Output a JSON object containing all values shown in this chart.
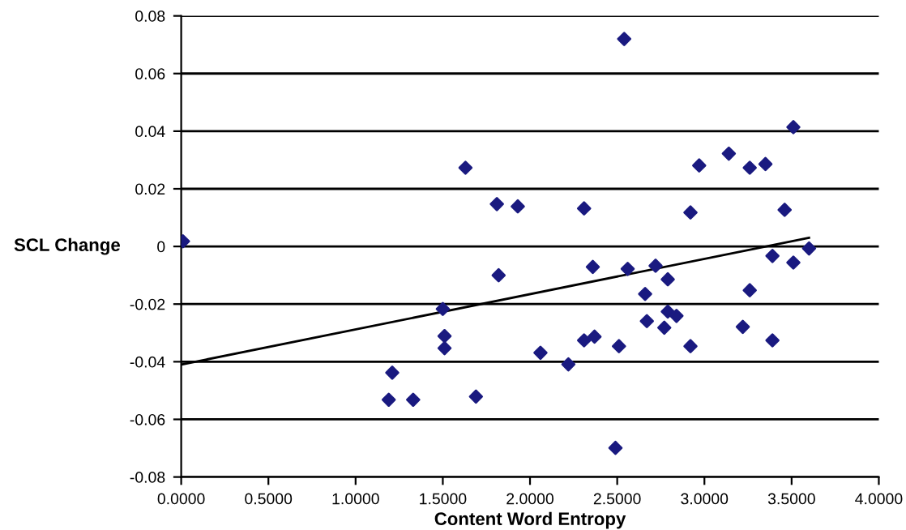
{
  "chart_data": {
    "type": "scatter",
    "xlabel": "Content Word Entropy",
    "ylabel": "SCL Change",
    "xlim": [
      0,
      4
    ],
    "xticks": [
      {
        "value": 0,
        "label": "0.0000"
      },
      {
        "value": 0.5,
        "label": "0.5000"
      },
      {
        "value": 1,
        "label": "1.0000"
      },
      {
        "value": 1.5,
        "label": "1.5000"
      },
      {
        "value": 2,
        "label": "2.0000"
      },
      {
        "value": 2.5,
        "label": "2.5000"
      },
      {
        "value": 3,
        "label": "3.0000"
      },
      {
        "value": 3.5,
        "label": "3.5000"
      },
      {
        "value": 4,
        "label": "4.0000"
      }
    ],
    "ylim": [
      -0.08,
      0.08
    ],
    "yticks": [
      -0.08,
      -0.06,
      -0.04,
      -0.02,
      0,
      0.02,
      0.04,
      0.06,
      0.08
    ],
    "grid": "y",
    "series": [
      {
        "marker": "diamond",
        "color": "#1a1a80",
        "x": [
          0.01,
          2.54,
          3.51,
          3.14,
          2.97,
          3.26,
          3.35,
          1.63,
          1.81,
          1.93,
          2.31,
          2.92,
          3.46,
          3.6,
          3.39,
          3.51,
          1.82,
          2.36,
          2.56,
          2.72,
          2.79,
          2.66,
          3.26,
          1.5,
          2.79,
          2.84,
          2.67,
          2.77,
          3.22,
          3.39,
          1.51,
          1.51,
          2.31,
          2.37,
          2.51,
          2.92,
          2.06,
          2.22,
          1.21,
          1.19,
          1.33,
          1.69,
          2.49
        ],
        "values": [
          0.0018,
          0.072,
          0.0414,
          0.0322,
          0.0281,
          0.0273,
          0.0286,
          0.0273,
          0.0147,
          0.0139,
          0.0132,
          0.0118,
          0.0127,
          -0.0007,
          -0.0033,
          -0.0056,
          -0.01,
          -0.0071,
          -0.0078,
          -0.0067,
          -0.0114,
          -0.0165,
          -0.0152,
          -0.0217,
          -0.0226,
          -0.0241,
          -0.0259,
          -0.0282,
          -0.0279,
          -0.0326,
          -0.0311,
          -0.0353,
          -0.0326,
          -0.0313,
          -0.0346,
          -0.0346,
          -0.0369,
          -0.0409,
          -0.0438,
          -0.0532,
          -0.0532,
          -0.0521,
          -0.0699
        ]
      },
      {
        "type": "line",
        "marker": "none",
        "color": "#000000",
        "x": [
          0,
          3.6
        ],
        "values": [
          -0.041,
          0.003
        ]
      }
    ]
  }
}
